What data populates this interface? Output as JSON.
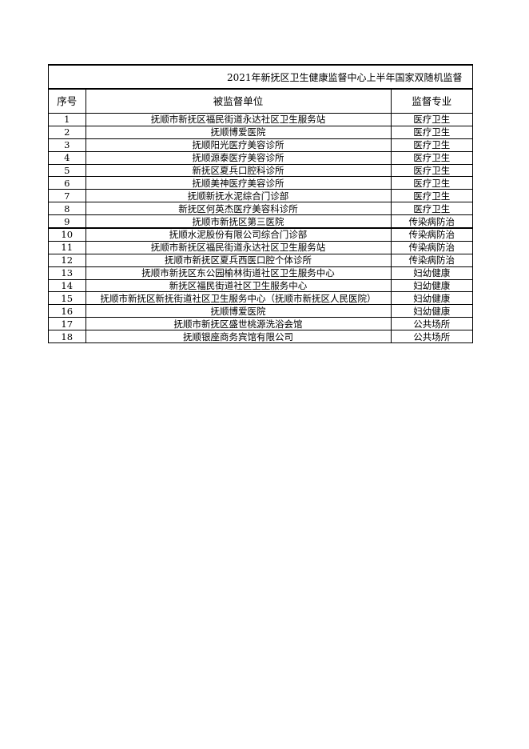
{
  "title": "2021年新抚区卫生健康监督中心上半年国家双随机监督",
  "headers": {
    "index": "序号",
    "unit": "被监督单位",
    "specialty": "监督专业"
  },
  "rows": [
    {
      "no": "1",
      "unit": "抚顺市新抚区福民街道永达社区卫生服务站",
      "spec": "医疗卫生"
    },
    {
      "no": "2",
      "unit": "抚顺博爱医院",
      "spec": "医疗卫生"
    },
    {
      "no": "3",
      "unit": "抚顺阳光医疗美容诊所",
      "spec": "医疗卫生"
    },
    {
      "no": "4",
      "unit": "抚顺源泰医疗美容诊所",
      "spec": "医疗卫生"
    },
    {
      "no": "5",
      "unit": "新抚区夏兵口腔科诊所",
      "spec": "医疗卫生"
    },
    {
      "no": "6",
      "unit": "抚顺美神医疗美容诊所",
      "spec": "医疗卫生"
    },
    {
      "no": "7",
      "unit": "抚顺新抚水泥综合门诊部",
      "spec": "医疗卫生"
    },
    {
      "no": "8",
      "unit": "新抚区何英杰医疗美容科诊所",
      "spec": "医疗卫生"
    },
    {
      "no": "9",
      "unit": "抚顺市新抚区第三医院",
      "spec": "传染病防治"
    },
    {
      "no": "10",
      "unit": "抚顺水泥股份有限公司综合门诊部",
      "spec": "传染病防治"
    },
    {
      "no": "11",
      "unit": "抚顺市新抚区福民街道永达社区卫生服务站",
      "spec": "传染病防治"
    },
    {
      "no": "12",
      "unit": "抚顺市新抚区夏兵西医口腔个体诊所",
      "spec": "传染病防治"
    },
    {
      "no": "13",
      "unit": "抚顺市新抚区东公园榆林街道社区卫生服务中心",
      "spec": "妇幼健康"
    },
    {
      "no": "14",
      "unit": "新抚区福民街道社区卫生服务中心",
      "spec": "妇幼健康"
    },
    {
      "no": "15",
      "unit": "抚顺市新抚区新抚街道社区卫生服务中心（抚顺市新抚区人民医院）",
      "spec": "妇幼健康"
    },
    {
      "no": "16",
      "unit": "抚顺博爱医院",
      "spec": "妇幼健康"
    },
    {
      "no": "17",
      "unit": "抚顺市新抚区盛世桃源洗浴会馆",
      "spec": "公共场所"
    },
    {
      "no": "18",
      "unit": "抚顺银座商务宾馆有限公司",
      "spec": "公共场所"
    }
  ]
}
